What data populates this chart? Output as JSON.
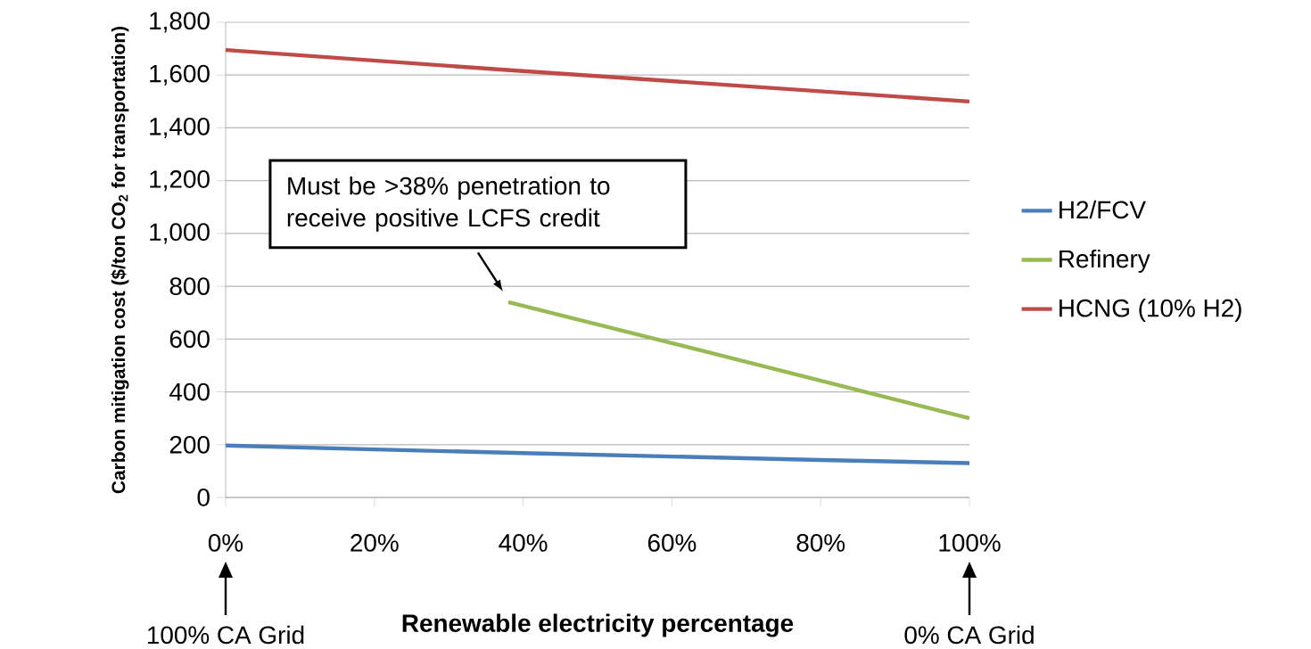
{
  "chart_data": {
    "type": "line",
    "xlabel": "Renewable electricity percentage",
    "ylabel": "Carbon mitigation cost ($/ton  CO$_{2}$ for transportation)",
    "xlim": [
      0,
      100
    ],
    "ylim": [
      0,
      1800
    ],
    "xticks": [
      {
        "value": 0,
        "label": "0%"
      },
      {
        "value": 20,
        "label": "20%"
      },
      {
        "value": 40,
        "label": "40%"
      },
      {
        "value": 60,
        "label": "60%"
      },
      {
        "value": 80,
        "label": "80%"
      },
      {
        "value": 100,
        "label": "100%"
      }
    ],
    "yticks": [
      {
        "value": 0,
        "label": "0"
      },
      {
        "value": 200,
        "label": "200"
      },
      {
        "value": 400,
        "label": "400"
      },
      {
        "value": 600,
        "label": "600"
      },
      {
        "value": 800,
        "label": "800"
      },
      {
        "value": 1000,
        "label": "1,000"
      },
      {
        "value": 1200,
        "label": "1,200"
      },
      {
        "value": 1400,
        "label": "1,400"
      },
      {
        "value": 1600,
        "label": "1,600"
      },
      {
        "value": 1800,
        "label": "1,800"
      }
    ],
    "grid": "y",
    "legend": "right",
    "series": [
      {
        "name": "H2/FCV",
        "color": "#4a7ebb",
        "x": [
          0,
          20,
          40,
          60,
          80,
          100
        ],
        "values": [
          197,
          182,
          168,
          155,
          142,
          130
        ]
      },
      {
        "name": "Refinery",
        "color": "#98b954",
        "x": [
          38,
          60,
          100
        ],
        "values": [
          740,
          585,
          300
        ]
      },
      {
        "name": "HCNG (10% H2)",
        "color": "#be4b48",
        "x": [
          0,
          40,
          60,
          100
        ],
        "values": [
          1695,
          1615,
          1577,
          1500
        ]
      }
    ],
    "annotations": [
      {
        "text": "Must be >38% penetration to receive positive LCFS credit",
        "x": 38,
        "y": 740
      },
      "100% CA Grid",
      "0% CA Grid"
    ]
  }
}
